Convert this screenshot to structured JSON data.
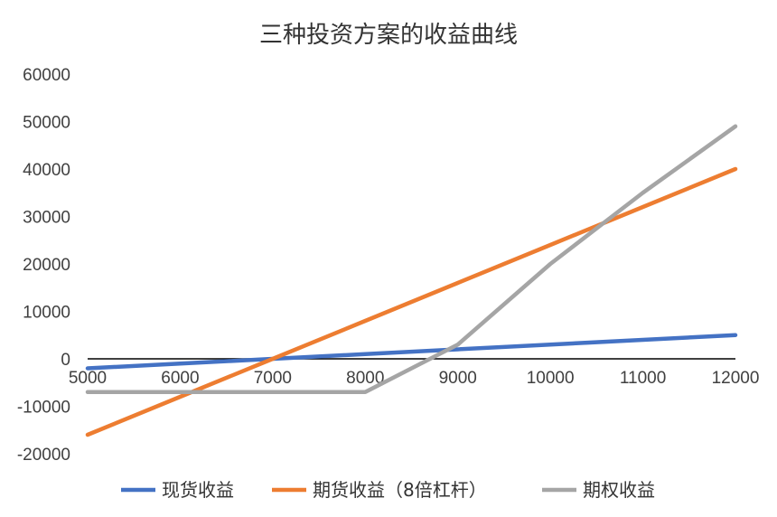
{
  "chart_data": {
    "type": "line",
    "title": "三种投资方案的收益曲线",
    "xlabel": "",
    "ylabel": "",
    "x": [
      5000,
      6000,
      7000,
      8000,
      9000,
      10000,
      11000,
      12000
    ],
    "x_ticks": [
      "5000",
      "6000",
      "7000",
      "8000",
      "9000",
      "10000",
      "11000",
      "12000"
    ],
    "y_ticks": [
      "60000",
      "50000",
      "40000",
      "30000",
      "20000",
      "10000",
      "0",
      "-10000",
      "-20000"
    ],
    "ylim": [
      -20000,
      60000
    ],
    "xlim": [
      5000,
      12000
    ],
    "grid": false,
    "legend_position": "bottom",
    "series": [
      {
        "name": "现货收益",
        "color": "#4472C4",
        "values": [
          -2000,
          -1000,
          0,
          1000,
          2000,
          3000,
          4000,
          5000
        ]
      },
      {
        "name": "期货收益（8倍杠杆）",
        "color": "#ED7D31",
        "values": [
          -16000,
          -8000,
          0,
          8000,
          16000,
          24000,
          32000,
          40000
        ]
      },
      {
        "name": "期权收益",
        "color": "#A5A5A5",
        "values": [
          -7000,
          -7000,
          -7000,
          -7000,
          3000,
          20000,
          35000,
          49000
        ]
      }
    ]
  }
}
